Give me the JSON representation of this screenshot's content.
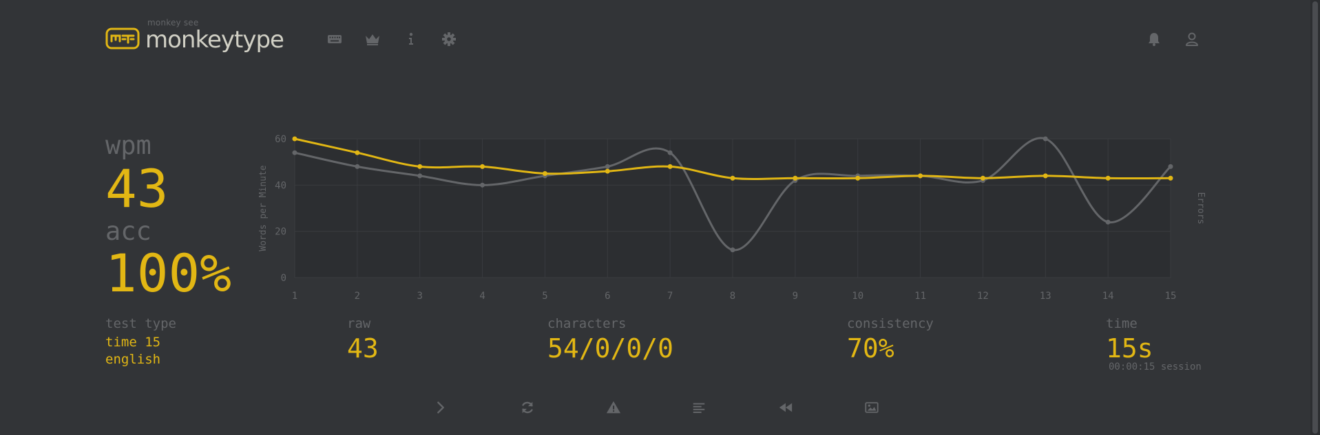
{
  "header": {
    "logo_top": "monkey see",
    "logo_main": "monkeytype",
    "nav_icons": [
      "keyboard-icon",
      "crown-icon",
      "info-icon",
      "gear-icon"
    ],
    "right_icons": [
      "bell-icon",
      "user-icon"
    ]
  },
  "result": {
    "wpm_label": "wpm",
    "wpm_value": "43",
    "acc_label": "acc",
    "acc_value": "100%",
    "test_type_label": "test type",
    "test_type_mode": "time 15",
    "test_type_language": "english",
    "raw_label": "raw",
    "raw_value": "43",
    "characters_label": "characters",
    "characters_value": "54/0/0/0",
    "consistency_label": "consistency",
    "consistency_value": "70%",
    "time_label": "time",
    "time_value": "15s",
    "session_text": "00:00:15 session"
  },
  "chart_data": {
    "type": "line",
    "x": [
      1,
      2,
      3,
      4,
      5,
      6,
      7,
      8,
      9,
      10,
      11,
      12,
      13,
      14,
      15
    ],
    "series": [
      {
        "values": [
          60,
          54,
          48,
          48,
          45,
          46,
          48,
          43,
          43,
          43,
          44,
          43,
          44,
          43,
          43
        ]
      },
      {
        "values": [
          54,
          48,
          44,
          40,
          44,
          48,
          54,
          12,
          42,
          44,
          44,
          42,
          60,
          24,
          48
        ]
      }
    ],
    "ylabel": "Words per Minute",
    "y2label": "Errors",
    "ylim": [
      0,
      60
    ],
    "yticks": [
      0,
      20,
      40,
      60
    ],
    "grid": true,
    "colors": {
      "wpm": "#e2b714",
      "raw": "#646669",
      "grid": "#3a3c3f",
      "plot_bg": "#2c2e31"
    }
  },
  "bottom_buttons": [
    {
      "icon": "chevron-right-icon"
    },
    {
      "icon": "restart-icon"
    },
    {
      "icon": "warning-icon"
    },
    {
      "icon": "words-history-icon"
    },
    {
      "icon": "replay-icon"
    },
    {
      "icon": "screenshot-icon"
    }
  ],
  "colors": {
    "background": "#323437",
    "main": "#e2b714",
    "sub": "#646669",
    "text": "#d1d0c5"
  }
}
